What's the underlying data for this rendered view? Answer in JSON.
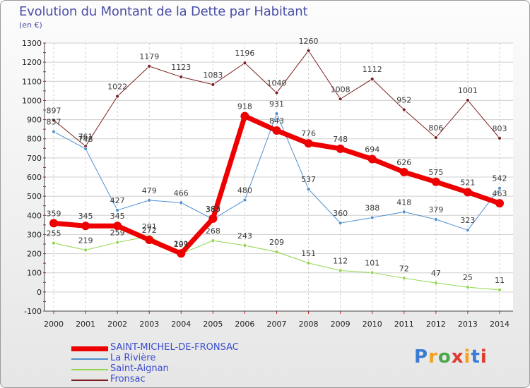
{
  "title": "Evolution du Montant de la Dette par Habitant",
  "subtitle": "(en €)",
  "logo": {
    "text": "Proxiti",
    "colors": [
      "#3a7bd5",
      "#f2a21e",
      "#4aa84a",
      "#e0392e",
      "#f2a21e",
      "#3a7bd5",
      "#e0392e"
    ]
  },
  "chart_data": {
    "type": "line",
    "x": [
      "2000",
      "2001",
      "2002",
      "2003",
      "2004",
      "2005",
      "2006",
      "2007",
      "2008",
      "2009",
      "2010",
      "2011",
      "2012",
      "2013",
      "2014"
    ],
    "ylim": [
      -100,
      1300
    ],
    "yticks": [
      -100,
      0,
      100,
      200,
      300,
      400,
      500,
      600,
      700,
      800,
      900,
      1000,
      1100,
      1200,
      1300
    ],
    "grid": true,
    "legend_position": "bottom-left",
    "series": [
      {
        "name": "Fronsac",
        "color": "#7b1f1f",
        "width": 1,
        "marker": 5,
        "values": [
          897,
          761,
          1022,
          1179,
          1123,
          1083,
          1196,
          1040,
          1260,
          1008,
          1112,
          952,
          806,
          1001,
          803
        ]
      },
      {
        "name": "La Rivière",
        "color": "#4f8fd0",
        "width": 1,
        "marker": 5,
        "values": [
          837,
          748,
          427,
          479,
          466,
          380,
          480,
          931,
          537,
          360,
          388,
          418,
          379,
          323,
          542
        ]
      },
      {
        "name": "Saint-Aignan",
        "color": "#8fd64a",
        "width": 1,
        "marker": 5,
        "values": [
          255,
          219,
          259,
          291,
          199,
          268,
          243,
          209,
          151,
          112,
          101,
          72,
          47,
          25,
          11
        ]
      },
      {
        "name": "SAINT-MICHEL-DE-FRONSAC",
        "color": "#ee0000",
        "width": 7,
        "marker": 12,
        "values": [
          359,
          345,
          345,
          272,
          201,
          383,
          918,
          843,
          776,
          748,
          694,
          626,
          575,
          521,
          463
        ]
      }
    ],
    "legend_order": [
      "SAINT-MICHEL-DE-FRONSAC",
      "La Rivière",
      "Saint-Aignan",
      "Fronsac"
    ]
  }
}
